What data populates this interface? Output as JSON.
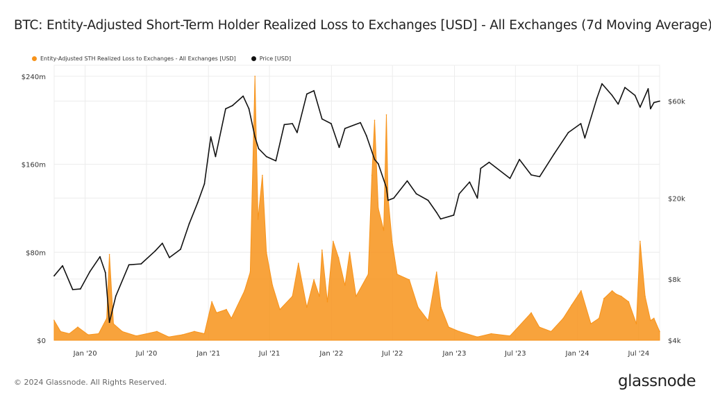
{
  "title": "BTC: Entity-Adjusted Short-Term Holder Realized Loss to Exchanges [USD] - All Exchanges (7d Moving Average)",
  "footer": "© 2024 Glassnode. All Rights Reserved.",
  "logo": "glassnode",
  "colors": {
    "loss": "#f7931a",
    "price": "#111111",
    "grid": "#ececec"
  },
  "chart_data": {
    "type": "area",
    "title": "BTC: Entity-Adjusted Short-Term Holder Realized Loss to Exchanges [USD] - All Exchanges (7d Moving Average)",
    "legend_position": "top-left",
    "grid": true,
    "x_tick_labels": [
      "Jan '20",
      "Jul '20",
      "Jan '21",
      "Jul '21",
      "Jan '22",
      "Jul '22",
      "Jan '23",
      "Jul '23",
      "Jan '24",
      "Jul '24"
    ],
    "x_range": [
      "2019-10-01",
      "2024-09-01"
    ],
    "y_left": {
      "label": "",
      "ticks": [
        0,
        80,
        160,
        240
      ],
      "tick_labels": [
        "$0",
        "$80m",
        "$160m",
        "$240m"
      ],
      "range": [
        0,
        250
      ],
      "unit": "USD millions",
      "scale": "linear"
    },
    "y_right": {
      "label": "",
      "ticks": [
        4000,
        8000,
        20000,
        60000
      ],
      "tick_labels": [
        "$4k",
        "$8k",
        "$20k",
        "$60k"
      ],
      "range": [
        4000,
        90000
      ],
      "unit": "USD",
      "scale": "log"
    },
    "series": [
      {
        "name": "Entity-Adjusted STH Realized Loss to Exchanges - All Exchanges [USD]",
        "axis": "left",
        "x": [
          "2019-10-01",
          "2019-10-20",
          "2019-11-15",
          "2019-12-10",
          "2020-01-10",
          "2020-02-10",
          "2020-03-05",
          "2020-03-13",
          "2020-03-25",
          "2020-04-20",
          "2020-06-01",
          "2020-08-01",
          "2020-09-05",
          "2020-10-15",
          "2020-11-20",
          "2020-12-20",
          "2021-01-11",
          "2021-01-25",
          "2021-02-23",
          "2021-03-10",
          "2021-04-18",
          "2021-05-05",
          "2021-05-19",
          "2021-05-28",
          "2021-06-10",
          "2021-06-22",
          "2021-07-10",
          "2021-08-01",
          "2021-09-07",
          "2021-09-25",
          "2021-10-20",
          "2021-11-10",
          "2021-11-26",
          "2021-12-04",
          "2021-12-20",
          "2022-01-06",
          "2022-01-22",
          "2022-02-10",
          "2022-02-24",
          "2022-03-15",
          "2022-04-20",
          "2022-05-01",
          "2022-05-09",
          "2022-05-20",
          "2022-06-05",
          "2022-06-13",
          "2022-06-18",
          "2022-06-30",
          "2022-07-15",
          "2022-08-20",
          "2022-09-15",
          "2022-10-15",
          "2022-11-09",
          "2022-11-22",
          "2022-12-15",
          "2023-01-15",
          "2023-03-10",
          "2023-04-20",
          "2023-06-15",
          "2023-08-17",
          "2023-09-10",
          "2023-10-15",
          "2023-11-20",
          "2023-12-15",
          "2024-01-12",
          "2024-02-10",
          "2024-03-05",
          "2024-03-20",
          "2024-04-13",
          "2024-04-25",
          "2024-05-10",
          "2024-06-01",
          "2024-06-24",
          "2024-07-05",
          "2024-07-20",
          "2024-08-05",
          "2024-08-15",
          "2024-09-01"
        ],
        "values": [
          18,
          8,
          6,
          12,
          5,
          6,
          20,
          78,
          15,
          8,
          4,
          8,
          3,
          5,
          8,
          6,
          35,
          25,
          28,
          20,
          45,
          62,
          240,
          110,
          150,
          80,
          50,
          28,
          40,
          70,
          30,
          55,
          40,
          82,
          35,
          90,
          75,
          50,
          80,
          40,
          60,
          150,
          200,
          120,
          100,
          205,
          130,
          90,
          60,
          55,
          30,
          18,
          62,
          30,
          12,
          8,
          3,
          6,
          4,
          25,
          12,
          8,
          20,
          32,
          45,
          15,
          20,
          38,
          45,
          42,
          40,
          35,
          15,
          90,
          40,
          18,
          20,
          8
        ]
      },
      {
        "name": "Price [USD]",
        "axis": "right",
        "x": [
          "2019-10-01",
          "2019-10-26",
          "2019-11-25",
          "2019-12-18",
          "2020-01-15",
          "2020-02-14",
          "2020-03-01",
          "2020-03-13",
          "2020-04-01",
          "2020-05-10",
          "2020-06-15",
          "2020-07-27",
          "2020-08-17",
          "2020-09-07",
          "2020-10-10",
          "2020-11-05",
          "2020-11-30",
          "2020-12-20",
          "2021-01-08",
          "2021-01-22",
          "2021-02-21",
          "2021-03-13",
          "2021-04-14",
          "2021-05-01",
          "2021-05-19",
          "2021-05-30",
          "2021-06-22",
          "2021-07-20",
          "2021-08-14",
          "2021-09-07",
          "2021-09-21",
          "2021-10-20",
          "2021-11-10",
          "2021-12-04",
          "2021-12-31",
          "2022-01-24",
          "2022-02-10",
          "2022-03-28",
          "2022-04-15",
          "2022-05-09",
          "2022-05-20",
          "2022-06-13",
          "2022-06-18",
          "2022-07-05",
          "2022-08-14",
          "2022-09-10",
          "2022-10-15",
          "2022-11-09",
          "2022-11-21",
          "2022-12-30",
          "2023-01-15",
          "2023-02-15",
          "2023-03-10",
          "2023-03-20",
          "2023-04-14",
          "2023-06-15",
          "2023-07-13",
          "2023-08-17",
          "2023-09-11",
          "2023-10-24",
          "2023-12-05",
          "2024-01-11",
          "2024-01-23",
          "2024-02-28",
          "2024-03-14",
          "2024-04-13",
          "2024-05-01",
          "2024-05-21",
          "2024-06-20",
          "2024-07-05",
          "2024-07-29",
          "2024-08-05",
          "2024-08-15",
          "2024-09-01"
        ],
        "values": [
          8300,
          9300,
          7100,
          7150,
          8700,
          10300,
          8600,
          4900,
          6600,
          9400,
          9500,
          11000,
          12000,
          10200,
          11200,
          15000,
          19000,
          23500,
          40000,
          32000,
          55000,
          57000,
          63500,
          55000,
          40000,
          35000,
          32000,
          30500,
          46000,
          46500,
          42000,
          65000,
          67500,
          49000,
          46500,
          35500,
          44000,
          47000,
          40500,
          31000,
          29500,
          22500,
          19500,
          20000,
          24300,
          21000,
          19500,
          17000,
          15800,
          16500,
          21000,
          24000,
          20000,
          28000,
          30000,
          25000,
          31000,
          26000,
          25500,
          33000,
          42000,
          46500,
          39500,
          62000,
          73000,
          64000,
          58000,
          70000,
          64000,
          56000,
          69000,
          55000,
          59000,
          60000
        ]
      }
    ]
  }
}
